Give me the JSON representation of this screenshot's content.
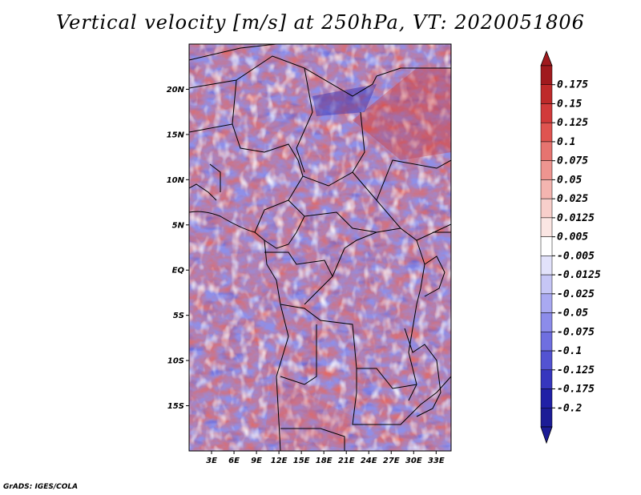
{
  "title": "Vertical velocity [m/s] at 250hPa, VT: 2020051806",
  "credit": "GrADS: IGES/COLA",
  "map": {
    "lon_range": [
      0,
      35
    ],
    "lat_range": [
      -20,
      25
    ],
    "lat_ticks": [
      {
        "value": 20,
        "label": "20N"
      },
      {
        "value": 15,
        "label": "15N"
      },
      {
        "value": 10,
        "label": "10N"
      },
      {
        "value": 5,
        "label": "5N"
      },
      {
        "value": 0,
        "label": "EQ"
      },
      {
        "value": -5,
        "label": "5S"
      },
      {
        "value": -10,
        "label": "10S"
      },
      {
        "value": -15,
        "label": "15S"
      }
    ],
    "lon_ticks": [
      {
        "value": 3,
        "label": "3E"
      },
      {
        "value": 6,
        "label": "6E"
      },
      {
        "value": 9,
        "label": "9E"
      },
      {
        "value": 12,
        "label": "12E"
      },
      {
        "value": 15,
        "label": "15E"
      },
      {
        "value": 18,
        "label": "18E"
      },
      {
        "value": 21,
        "label": "21E"
      },
      {
        "value": 24,
        "label": "24E"
      },
      {
        "value": 27,
        "label": "27E"
      },
      {
        "value": 30,
        "label": "30E"
      },
      {
        "value": 33,
        "label": "33E"
      }
    ]
  },
  "colorbar": {
    "levels": [
      {
        "label": "0.175",
        "color": "#a01a1e"
      },
      {
        "label": "0.15",
        "color": "#be2a2a"
      },
      {
        "label": "0.125",
        "color": "#d13a3a"
      },
      {
        "label": "0.1",
        "color": "#df5450"
      },
      {
        "label": "0.075",
        "color": "#e67470"
      },
      {
        "label": "0.05",
        "color": "#ee9590"
      },
      {
        "label": "0.025",
        "color": "#f4b5b0"
      },
      {
        "label": "0.0125",
        "color": "#f8cfcb"
      },
      {
        "label": "0.005",
        "color": "#fbe6e3"
      },
      {
        "label": "-0.005",
        "color": "#ffffff"
      },
      {
        "label": "-0.0125",
        "color": "#e2e2fb"
      },
      {
        "label": "-0.025",
        "color": "#c6c6f6"
      },
      {
        "label": "-0.05",
        "color": "#a9a9f1"
      },
      {
        "label": "-0.075",
        "color": "#8c8cea"
      },
      {
        "label": "-0.1",
        "color": "#6f6fe0"
      },
      {
        "label": "-0.125",
        "color": "#5353d2"
      },
      {
        "label": "-0.175",
        "color": "#3636be"
      },
      {
        "label": "-0.2",
        "color": "#2020a6"
      }
    ],
    "top_color": "#a01a1e",
    "bottom_color": "#1c1c96"
  }
}
